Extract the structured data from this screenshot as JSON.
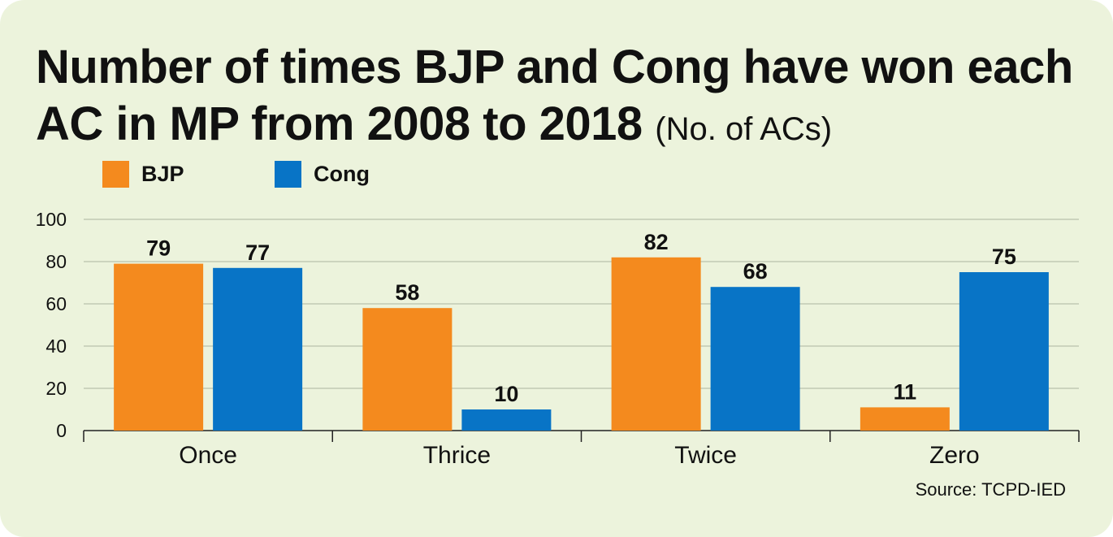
{
  "title": {
    "main": "Number of times BJP and Cong have won each AC in MP from 2008 to 2018",
    "unit": "(No. of ACs)"
  },
  "legend": [
    {
      "label": "BJP",
      "color": "#f48a1e"
    },
    {
      "label": "Cong",
      "color": "#0874c6"
    }
  ],
  "source": "Source: TCPD-IED",
  "chart_data": {
    "type": "bar",
    "categories": [
      "Once",
      "Thrice",
      "Twice",
      "Zero"
    ],
    "series": [
      {
        "name": "BJP",
        "color": "#f48a1e",
        "values": [
          79,
          58,
          82,
          11
        ]
      },
      {
        "name": "Cong",
        "color": "#0874c6",
        "values": [
          77,
          10,
          68,
          75
        ]
      }
    ],
    "ylim": [
      0,
      100
    ],
    "yticks": [
      0,
      20,
      40,
      60,
      80,
      100
    ],
    "grid": true,
    "legend_position": "top-left",
    "data_labels": true
  }
}
